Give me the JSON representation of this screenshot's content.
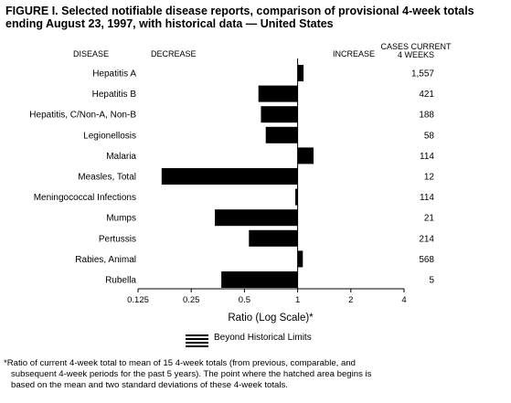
{
  "title_line1": "FIGURE I. Selected notifiable disease reports, comparison of provisional 4-week totals",
  "title_line2": "ending August 23, 1997, with historical data — United States",
  "headers": {
    "disease": "DISEASE",
    "decrease": "DECREASE",
    "increase": "INCREASE",
    "cases_line1": "CASES CURRENT",
    "cases_line2": "4 WEEKS"
  },
  "legend_label": "Beyond Historical Limits",
  "footnote": {
    "line1": "*Ratio of current 4-week total to mean of 15 4-week totals (from previous, comparable, and",
    "line2": "subsequent 4-week periods for the past 5 years). The point where the hatched area begins is",
    "line3": "based on the mean and two standard deviations of these 4-week totals."
  },
  "chart_data": {
    "type": "bar",
    "orientation": "horizontal",
    "xscale": "log2",
    "xlabel": "Ratio (Log Scale)*",
    "xlim": [
      0.125,
      4
    ],
    "xticks": [
      "0.125",
      "0.25",
      "0.5",
      "1",
      "2",
      "4"
    ],
    "xtick_values": [
      0.125,
      0.25,
      0.5,
      1,
      2,
      4
    ],
    "baseline": 1,
    "categories": [
      "Hepatitis A",
      "Hepatitis B",
      "Hepatitis, C/Non-A, Non-B",
      "Legionellosis",
      "Malaria",
      "Measles, Total",
      "Meningococcal Infections",
      "Mumps",
      "Pertussis",
      "Rabies, Animal",
      "Rubella"
    ],
    "values": [
      1.08,
      0.6,
      0.62,
      0.66,
      1.23,
      0.17,
      0.97,
      0.34,
      0.53,
      1.07,
      0.37
    ],
    "cases_current_4_weeks": [
      "1,557",
      "421",
      "188",
      "58",
      "114",
      "12",
      "114",
      "21",
      "214",
      "568",
      "5"
    ]
  }
}
